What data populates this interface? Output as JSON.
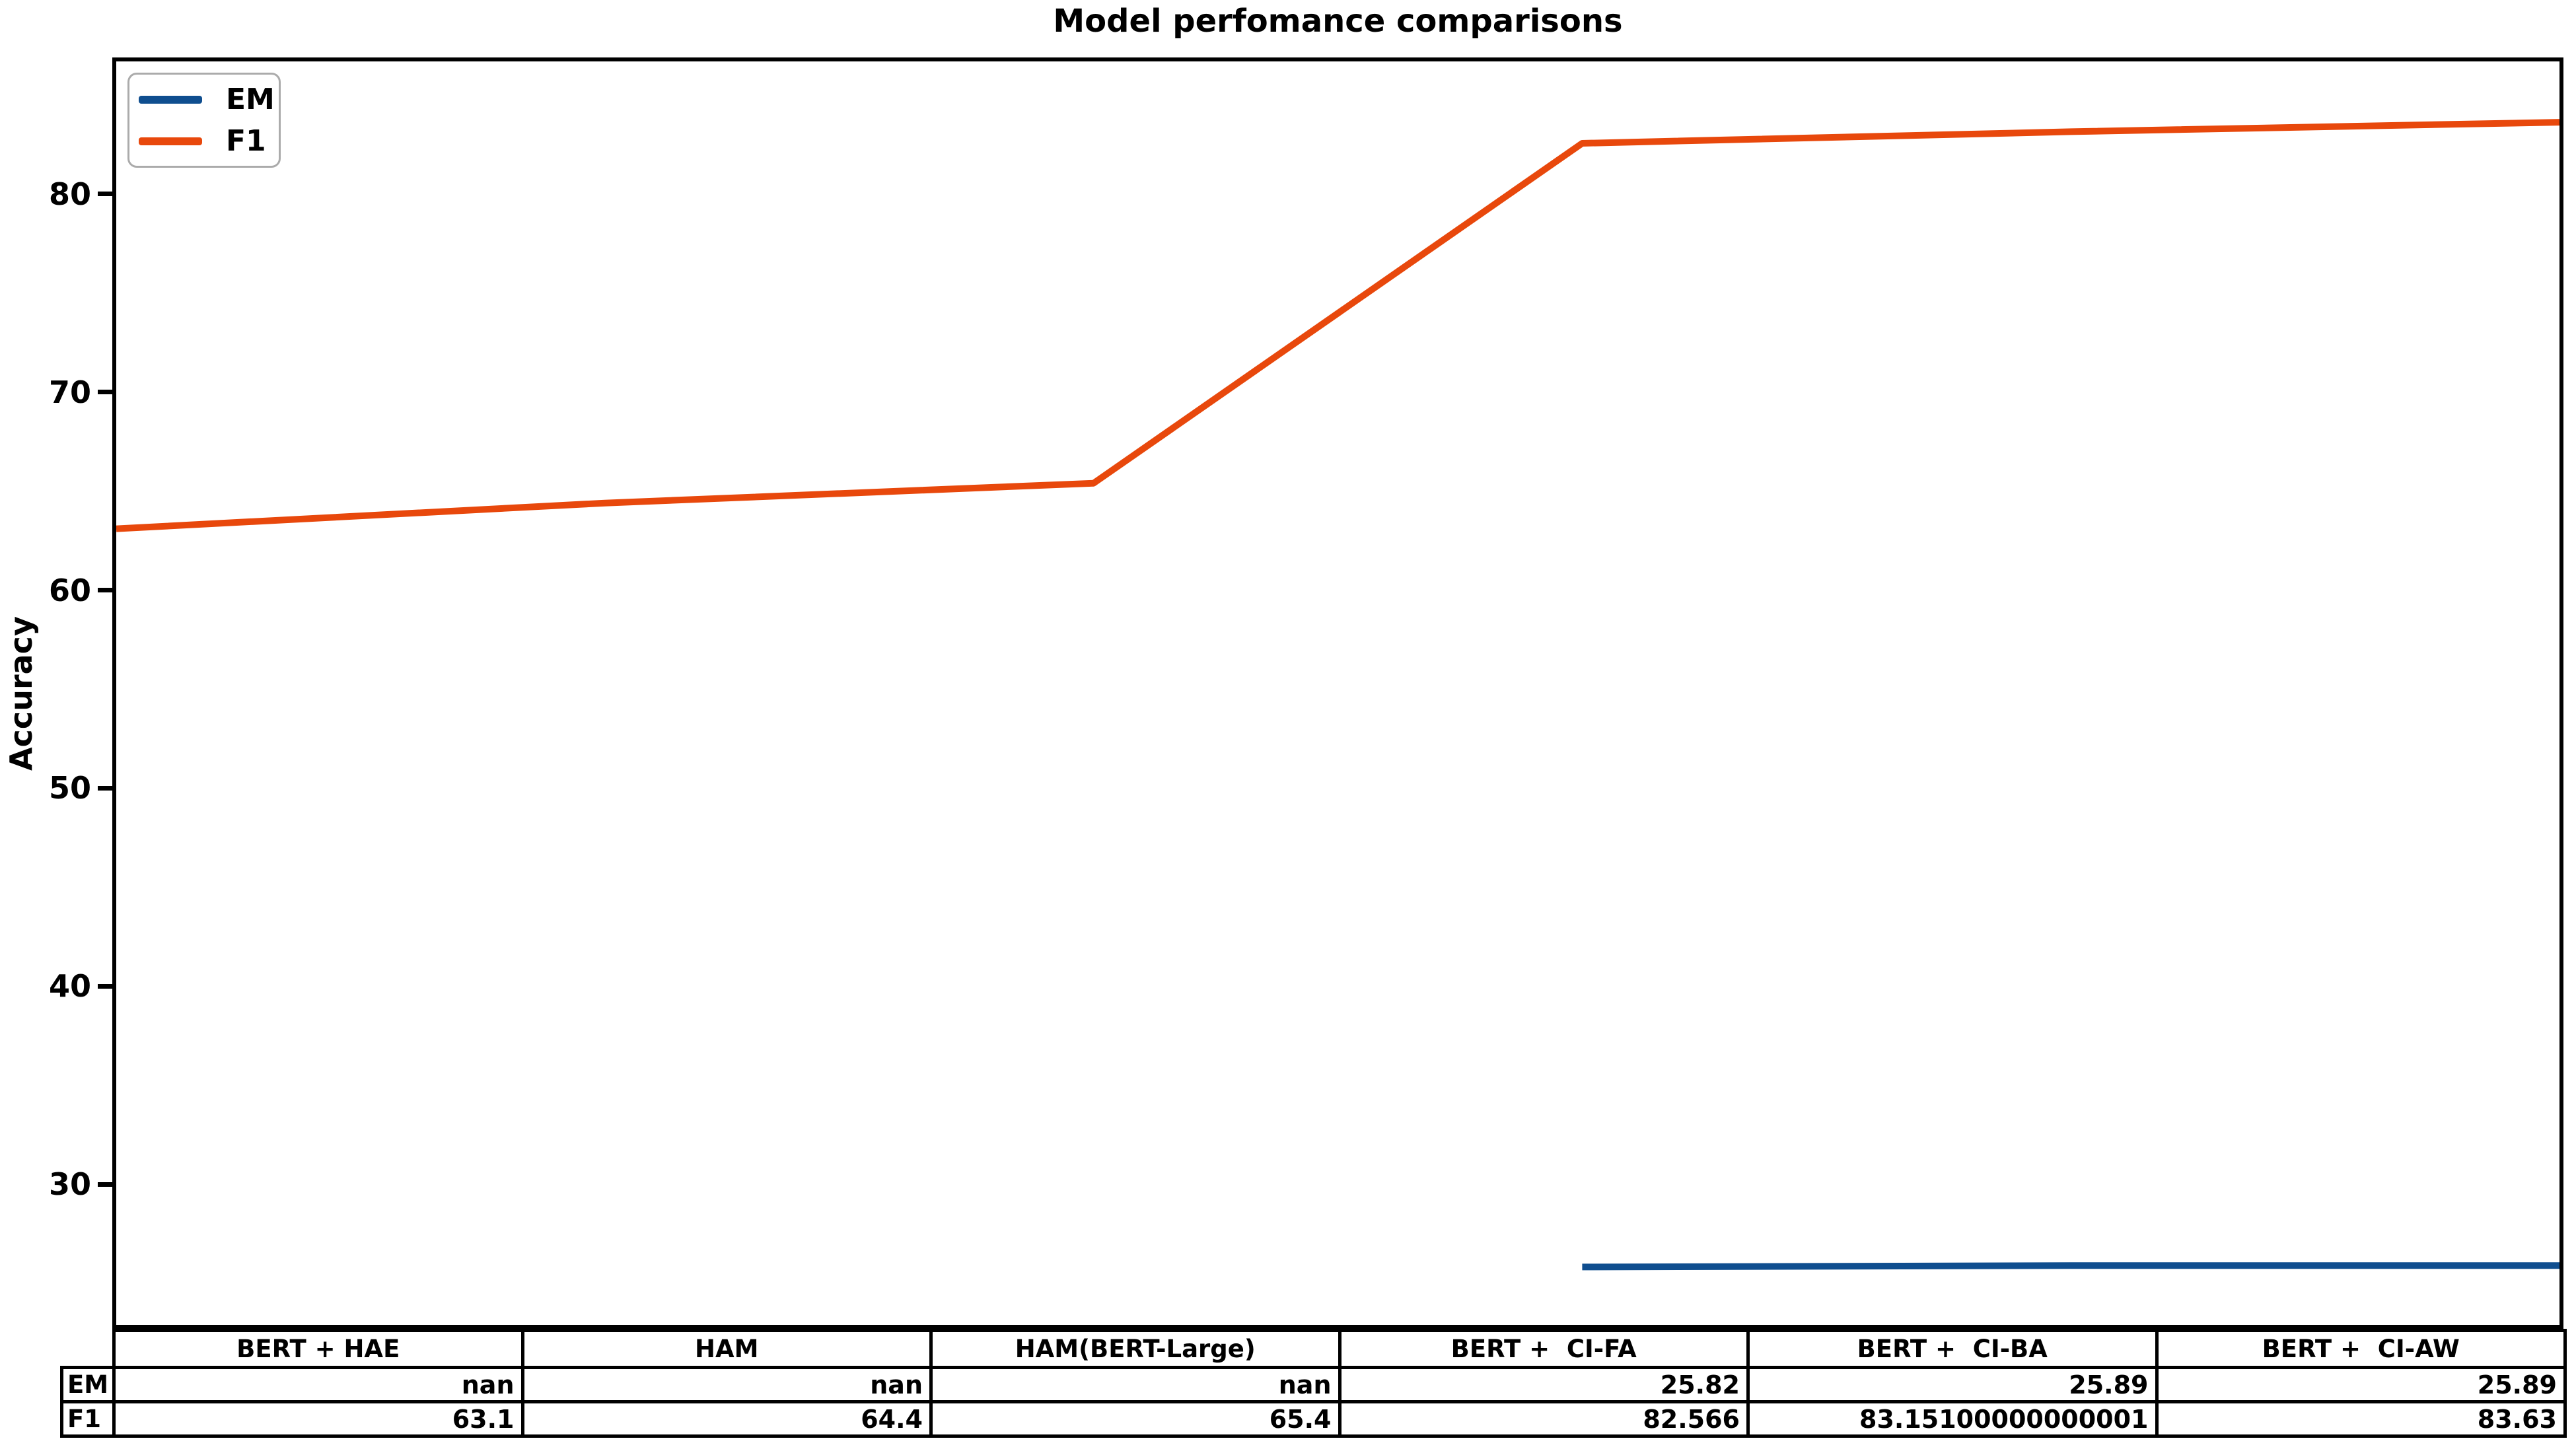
{
  "title": "Model perfomance comparisons",
  "ylabel": "Accuracy",
  "colors": {
    "em_line": "#0f4e8f",
    "f1_line": "#e8480c",
    "axis": "#000000",
    "legend_border": "#ababab",
    "background": "#ffffff"
  },
  "legend": {
    "position": "upper left",
    "entries": [
      {
        "name": "EM",
        "color": "#0f4e8f"
      },
      {
        "name": "F1",
        "color": "#e8480c"
      }
    ]
  },
  "chart_data": {
    "type": "line",
    "title": "Model perfomance comparisons",
    "xlabel": "",
    "ylabel": "Accuracy",
    "categories": [
      "BERT + HAE",
      "HAM",
      "HAM(BERT-Large)",
      "BERT +  CI-FA",
      "BERT +  CI-BA",
      "BERT +  CI-AW"
    ],
    "series": [
      {
        "name": "EM",
        "color": "#0f4e8f",
        "values": [
          null,
          null,
          null,
          25.82,
          25.89,
          25.89
        ]
      },
      {
        "name": "F1",
        "color": "#e8480c",
        "values": [
          63.1,
          64.4,
          65.4,
          82.566,
          83.15100000000001,
          83.63
        ]
      }
    ],
    "ylim": [
      22.9,
      86.7
    ],
    "yticks": [
      30,
      40,
      50,
      60,
      70,
      80
    ],
    "grid": false,
    "legend_position": "upper left"
  },
  "table": {
    "col_labels": [
      "BERT + HAE",
      "HAM",
      "HAM(BERT-Large)",
      "BERT +  CI-FA",
      "BERT +  CI-BA",
      "BERT +  CI-AW"
    ],
    "rows": [
      {
        "label": "EM",
        "values": [
          "nan",
          "nan",
          "nan",
          "25.82",
          "25.89",
          "25.89"
        ]
      },
      {
        "label": "F1",
        "values": [
          "63.1",
          "64.4",
          "65.4",
          "82.566",
          "83.15100000000001",
          "83.63"
        ]
      }
    ]
  }
}
